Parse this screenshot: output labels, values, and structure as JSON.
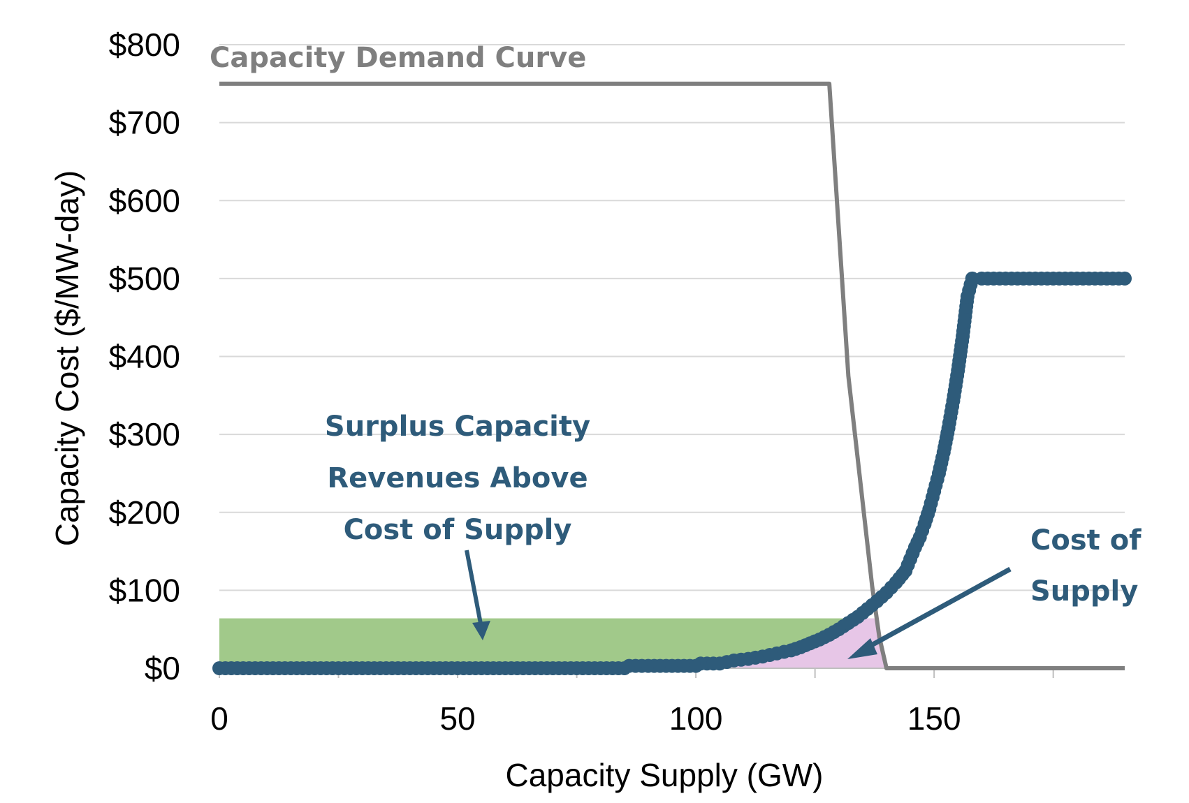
{
  "chart_data": {
    "type": "scatter",
    "xlabel": "Capacity Supply (GW)",
    "ylabel": "Capacity Cost ($/MW-day)",
    "xlim": [
      0,
      190
    ],
    "ylim": [
      0,
      800
    ],
    "x_ticks": [
      0,
      50,
      100,
      150
    ],
    "y_ticks": [
      0,
      100,
      200,
      300,
      400,
      500,
      600,
      700,
      800
    ],
    "x_tick_labels": [
      "0",
      "50",
      "100",
      "150"
    ],
    "y_tick_labels": [
      "$0",
      "$100",
      "$200",
      "$300",
      "$400",
      "$500",
      "$600",
      "$700",
      "$800"
    ],
    "grid": true,
    "colors": {
      "demand": "#7f7f7f",
      "supply": "#2e5b7a",
      "surplus": "#a1c98a",
      "pink": "#e7c6e7",
      "gridline": "#d9d9d9",
      "annotation": "#2e5b7a"
    },
    "series": [
      {
        "name": "Capacity Demand Curve",
        "kind": "line",
        "points": [
          [
            0,
            750
          ],
          [
            128,
            750
          ],
          [
            132,
            375
          ],
          [
            137,
            105
          ],
          [
            138.5,
            40
          ],
          [
            140,
            0
          ],
          [
            190,
            0
          ]
        ]
      },
      {
        "name": "Cost of Supply",
        "kind": "scatter",
        "points": [
          [
            0,
            0
          ],
          [
            5,
            0
          ],
          [
            10,
            0
          ],
          [
            15,
            0
          ],
          [
            20,
            0
          ],
          [
            25,
            0
          ],
          [
            30,
            0
          ],
          [
            35,
            0
          ],
          [
            40,
            0
          ],
          [
            45,
            0
          ],
          [
            50,
            0
          ],
          [
            55,
            0
          ],
          [
            60,
            0
          ],
          [
            65,
            0
          ],
          [
            70,
            0
          ],
          [
            75,
            0
          ],
          [
            80,
            0
          ],
          [
            85,
            0
          ],
          [
            86,
            3
          ],
          [
            90,
            3
          ],
          [
            95,
            3
          ],
          [
            100,
            3
          ],
          [
            101,
            6
          ],
          [
            105,
            6
          ],
          [
            108,
            10
          ],
          [
            111,
            12
          ],
          [
            114,
            15
          ],
          [
            117,
            19
          ],
          [
            120,
            23
          ],
          [
            122,
            27
          ],
          [
            124,
            32
          ],
          [
            126,
            37
          ],
          [
            128,
            43
          ],
          [
            130,
            50
          ],
          [
            132,
            58
          ],
          [
            134,
            66
          ],
          [
            136,
            76
          ],
          [
            138,
            86
          ],
          [
            140,
            97
          ],
          [
            142,
            110
          ],
          [
            144,
            125
          ],
          [
            145,
            140
          ],
          [
            146,
            155
          ],
          [
            147,
            168
          ],
          [
            148,
            185
          ],
          [
            149,
            204
          ],
          [
            150,
            227
          ],
          [
            151,
            250
          ],
          [
            152,
            277
          ],
          [
            153,
            308
          ],
          [
            154,
            343
          ],
          [
            155,
            382
          ],
          [
            156,
            426
          ],
          [
            157,
            477
          ],
          [
            158,
            500
          ],
          [
            160,
            500
          ],
          [
            165,
            500
          ],
          [
            170,
            500
          ],
          [
            175,
            500
          ],
          [
            180,
            500
          ],
          [
            185,
            500
          ],
          [
            190,
            500
          ]
        ]
      },
      {
        "name": "Surplus Capacity Revenues Above Cost of Supply",
        "kind": "area",
        "y_top": 64,
        "x_range": [
          0,
          138
        ]
      }
    ],
    "annotations": {
      "demand_label": "Capacity Demand Curve",
      "surplus_label_lines": [
        "Surplus Capacity",
        "Revenues Above",
        "Cost of Supply"
      ],
      "supply_label_lines": [
        "Cost of",
        "Supply"
      ]
    }
  }
}
